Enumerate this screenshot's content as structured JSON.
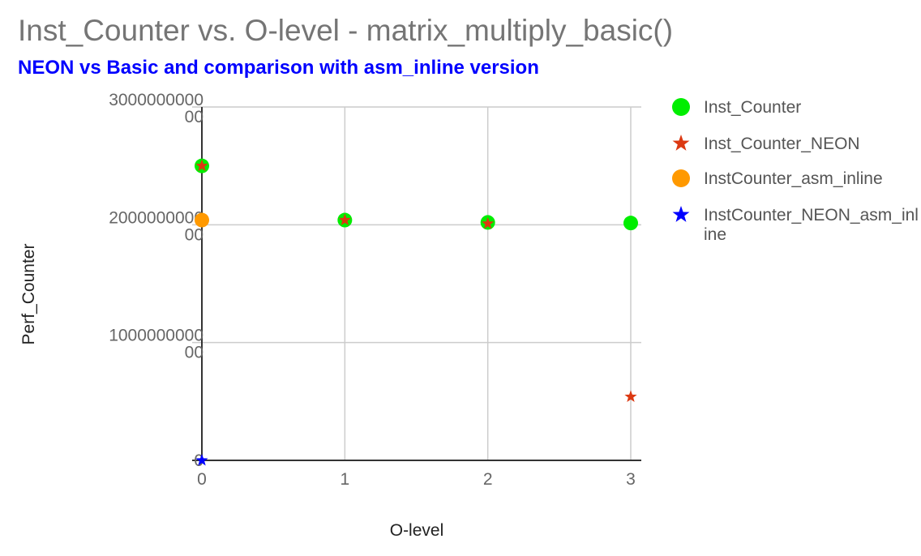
{
  "chart_data": {
    "type": "scatter",
    "title": "Inst_Counter vs. O-level - matrix_multiply_basic()",
    "subtitle": "NEON vs Basic and comparison with asm_inline version",
    "xlabel": "O-level",
    "ylabel": "Perf_Counter",
    "xlim": [
      0,
      3
    ],
    "ylim": [
      0,
      30000000000
    ],
    "x_ticks": [
      0,
      1,
      2,
      3
    ],
    "y_ticks": [
      {
        "value": 0,
        "lines": [
          "0"
        ]
      },
      {
        "value": 10000000000,
        "lines": [
          "1000000000",
          "00"
        ]
      },
      {
        "value": 20000000000,
        "lines": [
          "2000000000",
          "00"
        ]
      },
      {
        "value": 30000000000,
        "lines": [
          "3000000000",
          "00"
        ]
      }
    ],
    "grid": true,
    "legend_position": "right",
    "series": [
      {
        "name": "Inst_Counter",
        "marker": "circle",
        "color": "#00ee00",
        "x": [
          0,
          1,
          2,
          3
        ],
        "y": [
          25000000000,
          20400000000,
          20200000000,
          20150000000
        ]
      },
      {
        "name": "Inst_Counter_NEON",
        "marker": "star",
        "color": "#dc3912",
        "x": [
          0,
          1,
          2,
          3
        ],
        "y": [
          25000000000,
          20400000000,
          20100000000,
          5400000000
        ]
      },
      {
        "name": "InstCounter_asm_inline",
        "marker": "circle",
        "color": "#ff9900",
        "x": [
          0
        ],
        "y": [
          20400000000
        ]
      },
      {
        "name": "InstCounter_NEON_asm_inline",
        "marker": "star",
        "color": "#0000ff",
        "x": [
          0
        ],
        "y": [
          0
        ]
      }
    ]
  }
}
